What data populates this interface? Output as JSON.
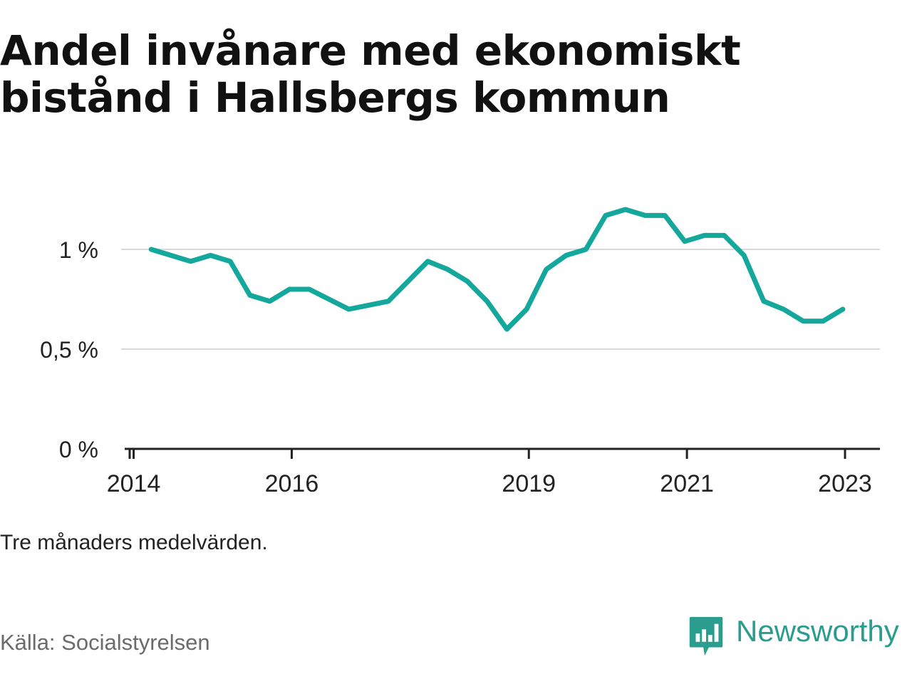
{
  "title_line1": "Andel invånare med ekonomiskt",
  "title_line2": "bistånd i Hallsbergs kommun",
  "note": "Tre månaders medelvärden.",
  "source": "Källa: Socialstyrelsen",
  "brand": "Newsworthy",
  "colors": {
    "line": "#14a79c",
    "grid": "#d9d9d9",
    "axis": "#222222",
    "brand": "#2a9d8f"
  },
  "icon": "newsworthy-logo-icon",
  "chart_data": {
    "type": "line",
    "ylim": [
      0,
      1.25
    ],
    "y_ticks": [
      {
        "value": 0,
        "label": "0 %"
      },
      {
        "value": 0.5,
        "label": "0,5 %"
      },
      {
        "value": 1,
        "label": "1 %"
      }
    ],
    "x_ticks": [
      {
        "value": 2014.0,
        "label": "2014"
      },
      {
        "value": 2016.0,
        "label": "2016"
      },
      {
        "value": 2019.0,
        "label": "2019"
      },
      {
        "value": 2021.0,
        "label": "2021"
      },
      {
        "value": 2023.0,
        "label": "2023"
      }
    ],
    "xlim": [
      2013.95,
      2023.55
    ],
    "grid": true,
    "series": [
      {
        "x": [
          2014.33,
          2014.58,
          2014.83,
          2015.08,
          2015.33,
          2015.58,
          2015.83,
          2016.08,
          2016.33,
          2016.58,
          2016.83,
          2017.08,
          2017.33,
          2017.58,
          2017.83,
          2018.08,
          2018.33,
          2018.58,
          2018.83,
          2019.08,
          2019.33,
          2019.58,
          2019.83,
          2020.08,
          2020.33,
          2020.58,
          2020.83,
          2021.08,
          2021.33,
          2021.58,
          2021.83,
          2022.08,
          2022.33,
          2022.58,
          2022.83,
          2023.08
        ],
        "y": [
          1.0,
          0.97,
          0.94,
          0.97,
          0.94,
          0.77,
          0.74,
          0.8,
          0.8,
          0.75,
          0.7,
          0.72,
          0.74,
          0.84,
          0.94,
          0.9,
          0.84,
          0.74,
          0.6,
          0.7,
          0.9,
          0.97,
          1.0,
          1.17,
          1.2,
          1.17,
          1.17,
          1.04,
          1.07,
          1.07,
          0.97,
          0.74,
          0.7,
          0.64,
          0.64,
          0.7
        ]
      }
    ]
  }
}
